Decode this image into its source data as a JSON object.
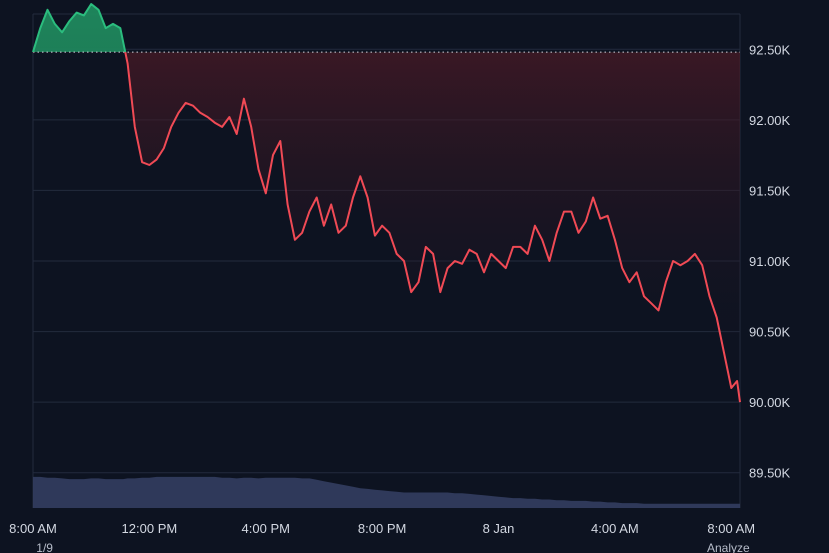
{
  "colors": {
    "background": "#0d1321",
    "grid": "#232b3d",
    "line_up": "#2bbd7e",
    "line_down": "#f04a55",
    "fill_up": "#1a6e4d",
    "fill_down": "#5a1b26",
    "volume": "#323b5e",
    "baseline": "#d0d4dd",
    "axis_text": "#d3d8e2"
  },
  "chart_data": {
    "type": "area",
    "xlabel": "",
    "ylabel": "",
    "ylim": [
      89250,
      92750
    ],
    "y_ticks": [
      89500,
      90000,
      90500,
      91000,
      91500,
      92000,
      92500
    ],
    "y_tick_labels": [
      "89.50K",
      "90.00K",
      "90.50K",
      "91.00K",
      "91.50K",
      "92.00K",
      "92.50K"
    ],
    "x_range_hours": [
      8,
      32.3
    ],
    "x_ticks": [
      {
        "hour": 8,
        "label": "8:00 AM"
      },
      {
        "hour": 12,
        "label": "12:00 PM"
      },
      {
        "hour": 16,
        "label": "4:00 PM"
      },
      {
        "hour": 20,
        "label": "8:00 PM"
      },
      {
        "hour": 24,
        "label": "8 Jan"
      },
      {
        "hour": 28,
        "label": "4:00 AM"
      },
      {
        "hour": 32,
        "label": "8:00 AM"
      }
    ],
    "x_sublabels": [
      {
        "hour": 8.4,
        "label": "1/9"
      },
      {
        "hour": 31.9,
        "label": "Analyze"
      }
    ],
    "baseline": 92480,
    "grid": true,
    "series": [
      {
        "x": [
          8,
          8.25,
          8.5,
          8.75,
          9,
          9.25,
          9.5,
          9.75,
          10,
          10.25,
          10.5,
          10.75,
          11,
          11.1,
          11.25,
          11.5,
          11.75,
          12,
          12.25,
          12.5,
          12.75,
          13,
          13.25,
          13.5,
          13.75,
          14,
          14.25,
          14.5,
          14.75,
          15,
          15.25,
          15.5,
          15.75,
          16,
          16.25,
          16.5,
          16.75,
          17,
          17.25,
          17.5,
          17.75,
          18,
          18.25,
          18.5,
          18.75,
          19,
          19.25,
          19.5,
          19.75,
          20,
          20.25,
          20.5,
          20.75,
          21,
          21.25,
          21.5,
          21.75,
          22,
          22.25,
          22.5,
          22.75,
          23,
          23.25,
          23.5,
          23.75,
          24,
          24.25,
          24.5,
          24.75,
          25,
          25.25,
          25.5,
          25.75,
          26,
          26.25,
          26.5,
          26.75,
          27,
          27.25,
          27.5,
          27.75,
          28,
          28.25,
          28.5,
          28.75,
          29,
          29.25,
          29.5,
          29.75,
          30,
          30.25,
          30.5,
          30.75,
          31,
          31.25,
          31.5,
          31.75,
          32,
          32.2,
          32.3
        ],
        "values": [
          92480,
          92650,
          92780,
          92680,
          92620,
          92700,
          92760,
          92740,
          92820,
          92780,
          92650,
          92680,
          92650,
          92550,
          92400,
          91950,
          91700,
          91680,
          91720,
          91800,
          91950,
          92050,
          92120,
          92100,
          92050,
          92020,
          91980,
          91950,
          92020,
          91900,
          92150,
          91950,
          91650,
          91480,
          91750,
          91850,
          91400,
          91150,
          91200,
          91350,
          91450,
          91250,
          91400,
          91200,
          91250,
          91450,
          91600,
          91450,
          91180,
          91250,
          91200,
          91050,
          91000,
          90780,
          90850,
          91100,
          91050,
          90780,
          90950,
          91000,
          90980,
          91080,
          91050,
          90920,
          91050,
          91000,
          90950,
          91100,
          91100,
          91050,
          91250,
          91150,
          91000,
          91200,
          91350,
          91350,
          91200,
          91280,
          91450,
          91300,
          91320,
          91150,
          90950,
          90850,
          90920,
          90750,
          90700,
          90650,
          90850,
          91000,
          90970,
          91000,
          91050,
          90970,
          90750,
          90600,
          90350,
          90100,
          90150,
          90000
        ]
      }
    ],
    "volume_values": [
      89470,
      89470,
      89465,
      89465,
      89460,
      89455,
      89455,
      89455,
      89460,
      89460,
      89455,
      89455,
      89455,
      89455,
      89460,
      89460,
      89465,
      89465,
      89470,
      89470,
      89470,
      89470,
      89470,
      89470,
      89470,
      89470,
      89470,
      89465,
      89465,
      89460,
      89465,
      89465,
      89460,
      89465,
      89465,
      89465,
      89465,
      89465,
      89460,
      89460,
      89450,
      89440,
      89430,
      89420,
      89410,
      89400,
      89390,
      89385,
      89380,
      89375,
      89370,
      89365,
      89360,
      89360,
      89360,
      89360,
      89360,
      89360,
      89360,
      89355,
      89355,
      89350,
      89345,
      89340,
      89335,
      89330,
      89325,
      89320,
      89320,
      89315,
      89315,
      89310,
      89310,
      89305,
      89305,
      89300,
      89300,
      89300,
      89295,
      89295,
      89290,
      89290,
      89285,
      89285,
      89285,
      89280,
      89280,
      89280,
      89280,
      89280,
      89280,
      89280,
      89280,
      89280,
      89280,
      89280,
      89280,
      89280,
      89280,
      89280
    ]
  }
}
